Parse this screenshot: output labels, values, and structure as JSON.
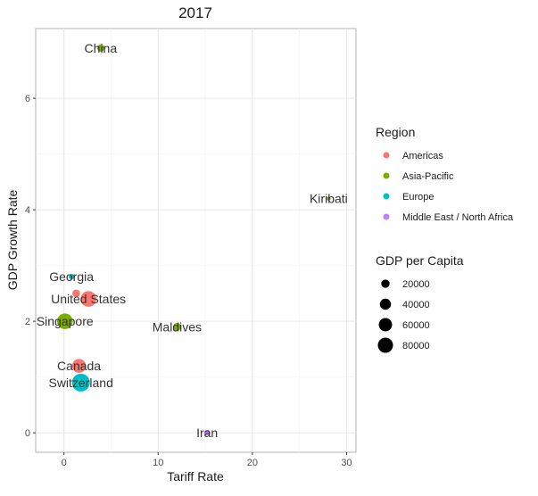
{
  "chart_data": {
    "type": "scatter",
    "title": "2017",
    "xlabel": "Tariff Rate",
    "ylabel": "GDP Growth Rate",
    "xlim": [
      -3,
      31
    ],
    "ylim": [
      -0.35,
      7.25
    ],
    "x_ticks": [
      0,
      10,
      20,
      30
    ],
    "y_ticks": [
      0,
      2,
      4,
      6
    ],
    "grid": true,
    "legend_position": "right",
    "color_legend": {
      "title": "Region",
      "entries": [
        {
          "label": "Americas",
          "color": "#F8766D"
        },
        {
          "label": "Asia-Pacific",
          "color": "#7CAE00"
        },
        {
          "label": "Europe",
          "color": "#00BFC4"
        },
        {
          "label": "Middle East / North Africa",
          "color": "#C77CFF"
        }
      ]
    },
    "size_legend": {
      "title": "GDP per Capita",
      "entries": [
        {
          "label": "20000",
          "value": 20000
        },
        {
          "label": "40000",
          "value": 40000
        },
        {
          "label": "60000",
          "value": 60000
        },
        {
          "label": "80000",
          "value": 80000
        }
      ]
    },
    "points": [
      {
        "x": 3.9,
        "y": 6.9,
        "label": "China",
        "region": "Asia-Pacific",
        "gdp_per_capita": 8800
      },
      {
        "x": 28.1,
        "y": 4.2,
        "label": "Kiribati",
        "region": "Asia-Pacific",
        "gdp_per_capita": 1600
      },
      {
        "x": 0.8,
        "y": 2.8,
        "label": "Georgia",
        "region": "Europe",
        "gdp_per_capita": 4300
      },
      {
        "x": 1.3,
        "y": 2.5,
        "label": "",
        "region": "Americas",
        "gdp_per_capita": 11000
      },
      {
        "x": 2.6,
        "y": 2.4,
        "label": "United States",
        "region": "Americas",
        "gdp_per_capita": 60000
      },
      {
        "x": 0.1,
        "y": 2.0,
        "label": "Singapore",
        "region": "Asia-Pacific",
        "gdp_per_capita": 60000
      },
      {
        "x": 12.0,
        "y": 1.9,
        "label": "Maldives",
        "region": "Asia-Pacific",
        "gdp_per_capita": 11000
      },
      {
        "x": 1.6,
        "y": 1.2,
        "label": "Canada",
        "region": "Americas",
        "gdp_per_capita": 45000
      },
      {
        "x": 1.8,
        "y": 0.9,
        "label": "Switzerland",
        "region": "Europe",
        "gdp_per_capita": 80000
      },
      {
        "x": 15.2,
        "y": 0.0,
        "label": "Iran",
        "region": "Middle East / North Africa",
        "gdp_per_capita": 5500
      }
    ]
  }
}
